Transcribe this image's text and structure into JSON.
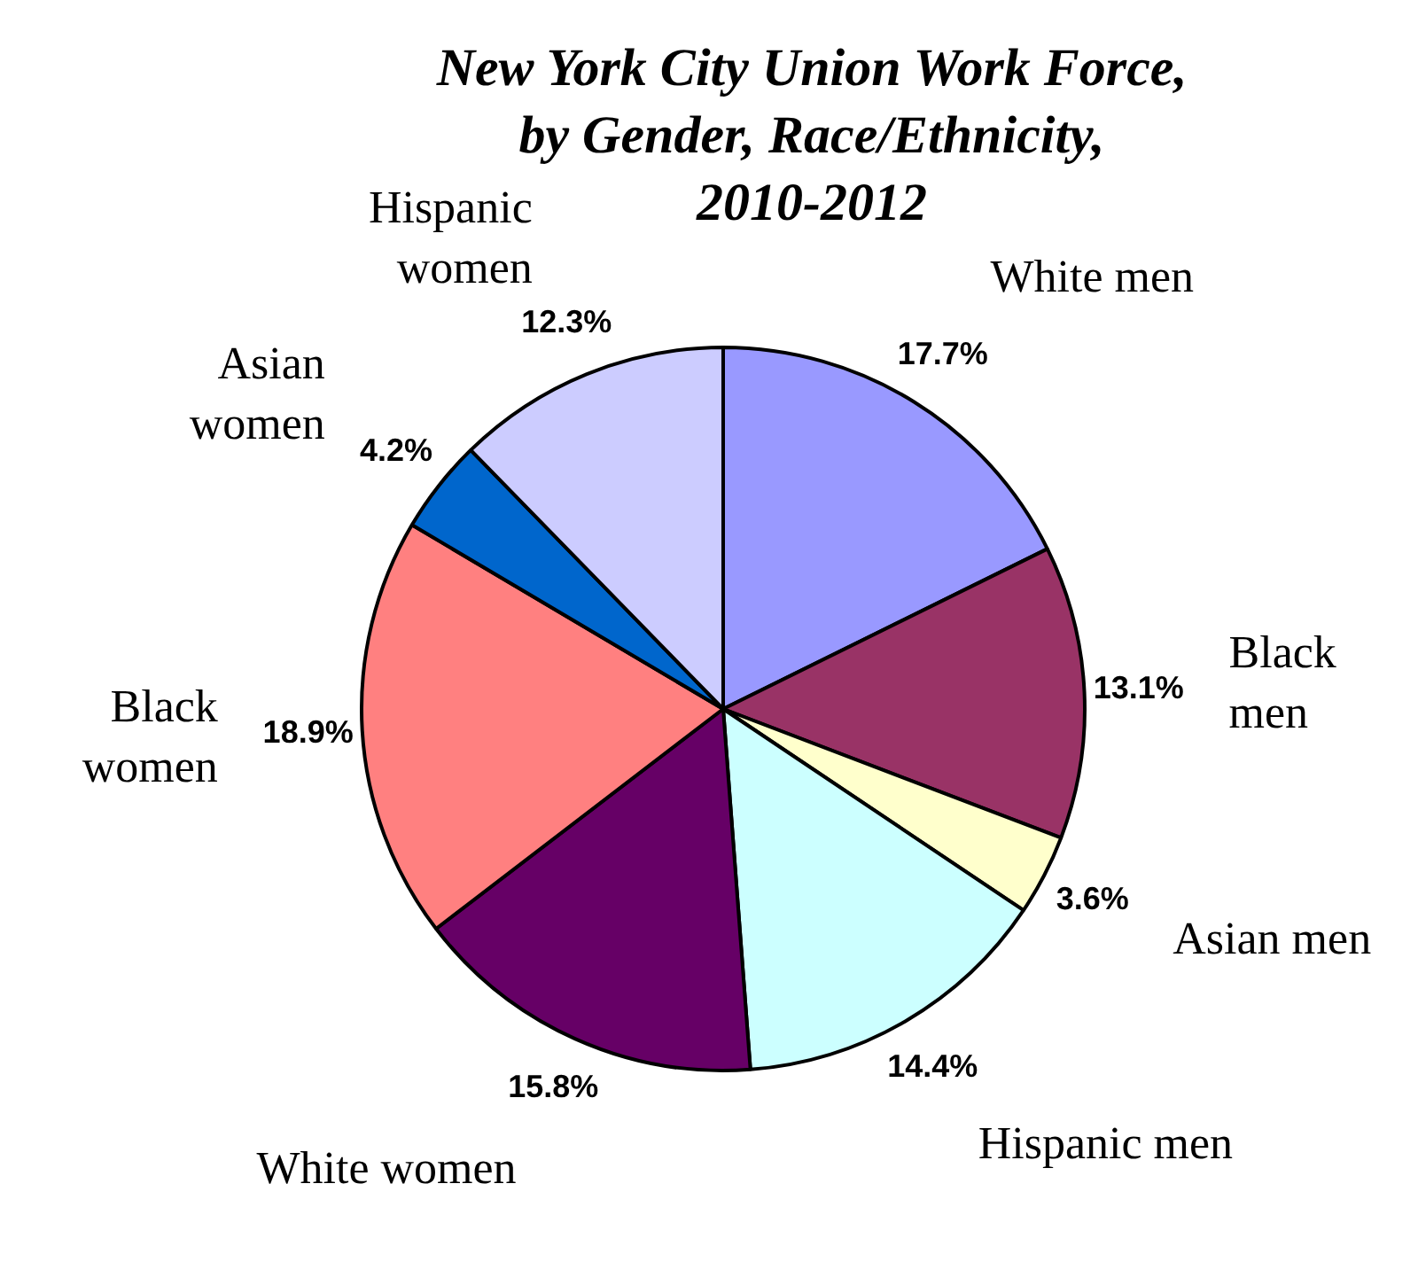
{
  "chart_data": {
    "type": "pie",
    "title": "New York City Union Work Force, by Gender, Race/Ethnicity, 2010-2012",
    "categories": [
      "White men",
      "Black men",
      "Asian men",
      "Hispanic men",
      "White women",
      "Black women",
      "Asian women",
      "Hispanic women"
    ],
    "values": [
      17.7,
      13.1,
      3.6,
      14.4,
      15.8,
      18.9,
      4.2,
      12.3
    ],
    "colors": [
      "#9999ff",
      "#993366",
      "#ffffcc",
      "#ccffff",
      "#660066",
      "#ff8080",
      "#0066cc",
      "#ccccff"
    ],
    "value_labels": [
      "17.7%",
      "13.1%",
      "3.6%",
      "14.4%",
      "15.8%",
      "18.9%",
      "4.2%",
      "12.3%"
    ]
  }
}
